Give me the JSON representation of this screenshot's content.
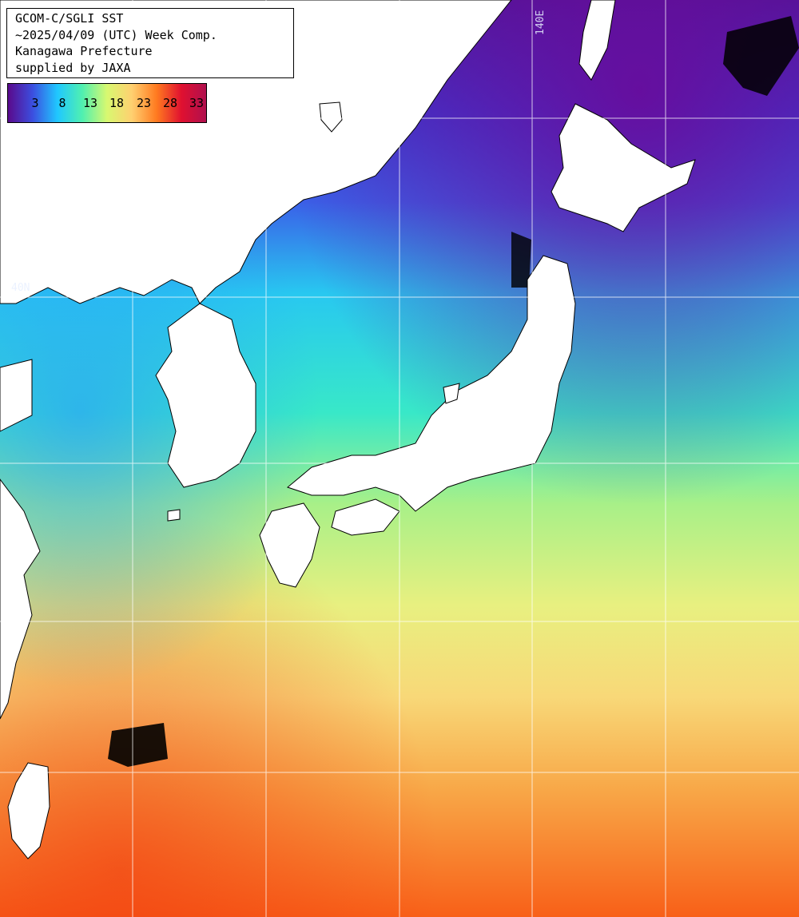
{
  "header": {
    "line1": "GCOM-C/SGLI SST",
    "line2": "~2025/04/09 (UTC) Week Comp.",
    "line3": "Kanagawa Prefecture",
    "line4": "supplied by JAXA"
  },
  "colorbar": {
    "labels": [
      "3",
      "8",
      "13",
      "18",
      "23",
      "28",
      "33"
    ],
    "gradient": [
      "#5a0a8c",
      "#3b4fe0",
      "#20c8ff",
      "#50f0b0",
      "#d8f870",
      "#ffd070",
      "#ff7a20",
      "#e01030",
      "#b0104e"
    ]
  },
  "grid": {
    "lat_label": "40N",
    "lon_label": "140E"
  },
  "colors": {
    "land": "#ffffff",
    "grid_line": "#ffffff",
    "cloud": "#000000"
  }
}
